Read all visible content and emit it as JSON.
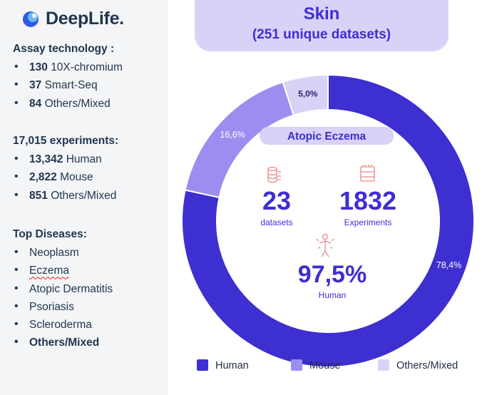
{
  "brand": "DeepLife.",
  "assay": {
    "heading": "Assay technology :",
    "items": [
      {
        "count": "130",
        "label": "10X-chromium"
      },
      {
        "count": "37",
        "label": "Smart-Seq"
      },
      {
        "count": "84",
        "label": "Others/Mixed"
      }
    ]
  },
  "experiments": {
    "heading": "17,015 experiments:",
    "items": [
      {
        "count": "13,342",
        "label": "Human"
      },
      {
        "count": "2,822",
        "label": "Mouse"
      },
      {
        "count": "851",
        "label": "Others/Mixed"
      }
    ]
  },
  "diseases": {
    "heading": "Top Diseases:",
    "items": [
      "Neoplasm",
      "Eczema",
      "Atopic Dermatitis",
      "Psoriasis",
      "Scleroderma",
      "Others/Mixed"
    ]
  },
  "header": {
    "title": "Skin",
    "subtitle": "(251 unique datasets)"
  },
  "center": {
    "disease": "Atopic Eczema",
    "datasets_value": "23",
    "datasets_label": "datasets",
    "experiments_value": "1832",
    "experiments_label": "Experiments",
    "human_value": "97,5%",
    "human_label": "Human"
  },
  "colors": {
    "human": "#3d2fd0",
    "mouse": "#9c8ef0",
    "other": "#d9d2f7",
    "accent_icon": "#e98a8a"
  },
  "chart_data": {
    "type": "pie",
    "title": "Skin",
    "subtitle": "(251 unique datasets)",
    "categories": [
      "Human",
      "Mouse",
      "Others/Mixed"
    ],
    "values": [
      78.4,
      16.6,
      5.0
    ],
    "labels": [
      "78,4%",
      "16,6%",
      "5,0%"
    ],
    "legend": "bottom"
  }
}
